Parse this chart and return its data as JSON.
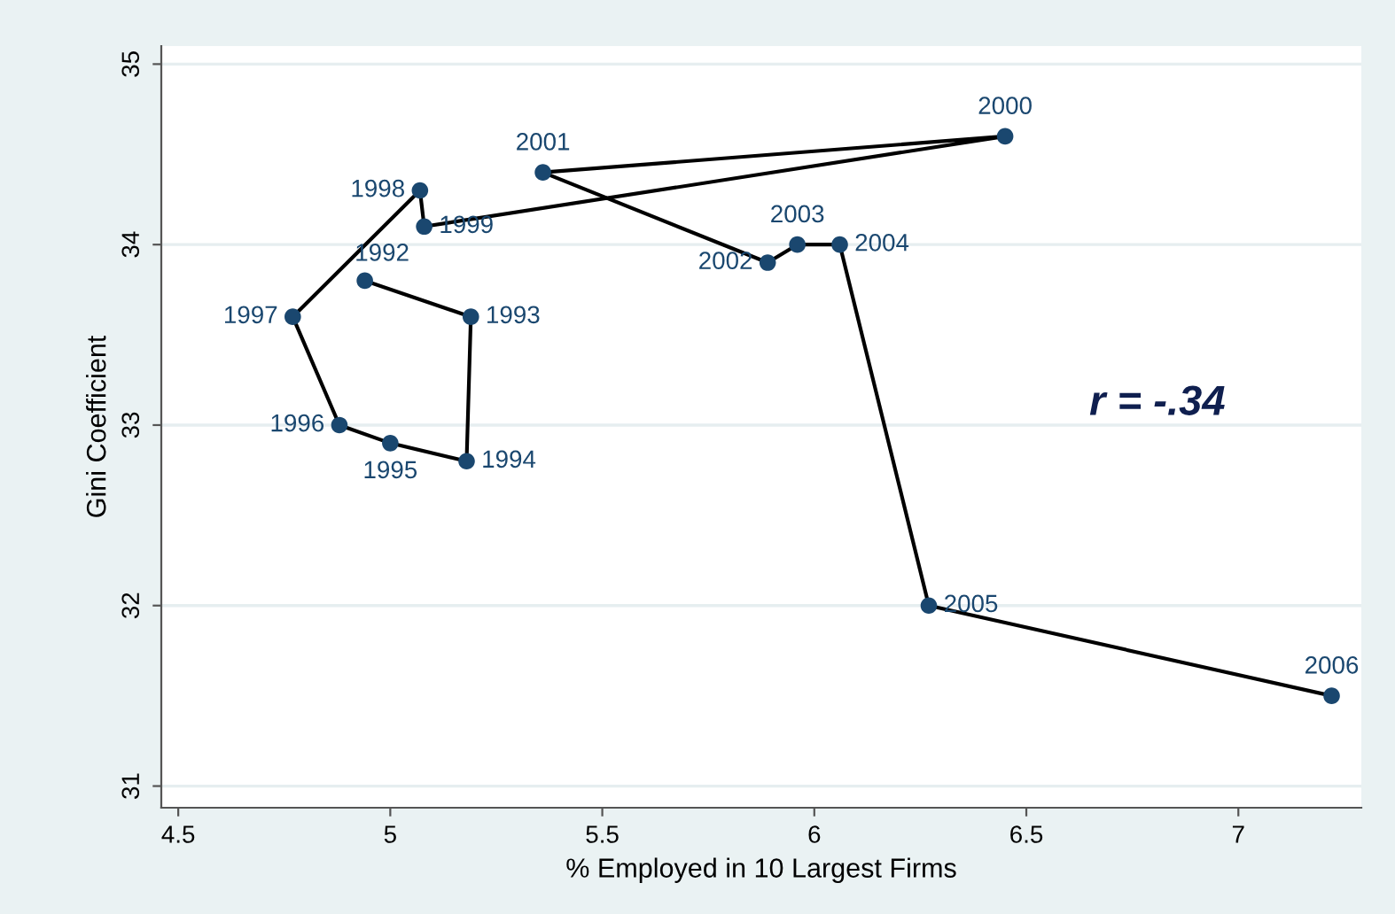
{
  "chart_data": {
    "type": "scatter",
    "xlabel": "% Employed in 10 Largest Firms",
    "ylabel": "Gini Coefficient",
    "xlim": [
      4.46,
      7.29
    ],
    "xticks": [
      4.5,
      5,
      5.5,
      6,
      6.5,
      7
    ],
    "ylim": [
      30.88,
      35.1
    ],
    "yticks": [
      31,
      32,
      33,
      34,
      35
    ],
    "grid": "y",
    "series": [
      {
        "type": "line",
        "color": "#000000",
        "marker": "none",
        "x": [
          4.94,
          5.19,
          5.18,
          5.0,
          4.88,
          4.77,
          5.07,
          5.08,
          6.45,
          5.36,
          5.89,
          5.96,
          6.06,
          6.27,
          7.22
        ],
        "values": [
          33.8,
          33.6,
          32.8,
          32.9,
          33.0,
          33.6,
          34.3,
          34.1,
          34.6,
          34.4,
          33.9,
          34.0,
          34.0,
          32.0,
          31.5
        ]
      },
      {
        "color": "#1a476f",
        "marker": "circle",
        "x": [
          4.94,
          5.19,
          5.18,
          5.0,
          4.88,
          4.77,
          5.07,
          5.08,
          6.45,
          5.36,
          5.89,
          5.96,
          6.06,
          6.27,
          7.22
        ],
        "values": [
          33.8,
          33.6,
          32.8,
          32.9,
          33.0,
          33.6,
          34.3,
          34.1,
          34.6,
          34.4,
          33.9,
          34.0,
          34.0,
          32.0,
          31.5
        ]
      }
    ],
    "annotations": [
      {
        "text": "1992",
        "x": 4.94,
        "y": 33.8
      },
      {
        "text": "1993",
        "x": 5.19,
        "y": 33.6
      },
      {
        "text": "1994",
        "x": 5.18,
        "y": 32.8
      },
      {
        "text": "1995",
        "x": 5.0,
        "y": 32.9
      },
      {
        "text": "1996",
        "x": 4.88,
        "y": 33.0
      },
      {
        "text": "1997",
        "x": 4.77,
        "y": 33.6
      },
      {
        "text": "1998",
        "x": 5.07,
        "y": 34.3
      },
      {
        "text": "1999",
        "x": 5.08,
        "y": 34.1
      },
      {
        "text": "2000",
        "x": 6.45,
        "y": 34.6
      },
      {
        "text": "2001",
        "x": 5.36,
        "y": 34.4
      },
      {
        "text": "2002",
        "x": 5.89,
        "y": 33.9
      },
      {
        "text": "2003",
        "x": 5.96,
        "y": 34.0
      },
      {
        "text": "2004",
        "x": 6.06,
        "y": 34.0
      },
      {
        "text": "2005",
        "x": 6.27,
        "y": 32.0
      },
      {
        "text": "2006",
        "x": 7.22,
        "y": 31.5
      },
      "r = -.34"
    ]
  }
}
